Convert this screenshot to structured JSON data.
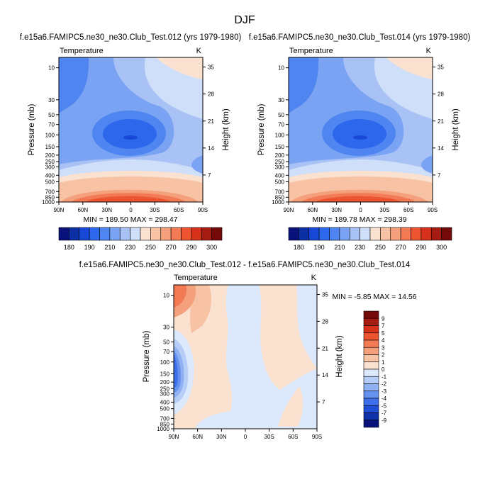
{
  "figure": {
    "title": "DJF"
  },
  "chart_data": [
    {
      "type": "heatmap",
      "title": "f.e15a6.FAMIPC5.ne30_ne30.Club_Test.012 (yrs 1979-1980)",
      "left_label": "Temperature",
      "right_label": "K",
      "xlabel": "",
      "ylabel": "Pressure (mb)",
      "y2label": "Height (km)",
      "x_ticks": [
        "90N",
        "60N",
        "30N",
        "0",
        "30S",
        "60S",
        "90S"
      ],
      "y_ticks": [
        "10",
        "30",
        "50",
        "70",
        "100",
        "150",
        "200",
        "250",
        "300",
        "400",
        "500",
        "700",
        "850",
        "1000"
      ],
      "y2_ticks": [
        "35",
        "28",
        "21",
        "14",
        "7"
      ],
      "stats": "MIN = 189.50  MAX = 298.47",
      "min": 189.5,
      "max": 298.47,
      "colorbar_labels": [
        "180",
        "190",
        "210",
        "230",
        "250",
        "270",
        "290",
        "300"
      ]
    },
    {
      "type": "heatmap",
      "title": "f.e15a6.FAMIPC5.ne30_ne30.Club_Test.014 (yrs 1979-1980)",
      "left_label": "Temperature",
      "right_label": "K",
      "xlabel": "",
      "ylabel": "Pressure (mb)",
      "y2label": "Height (km)",
      "x_ticks": [
        "90N",
        "60N",
        "30N",
        "0",
        "30S",
        "60S",
        "90S"
      ],
      "y_ticks": [
        "10",
        "30",
        "50",
        "70",
        "100",
        "150",
        "200",
        "250",
        "300",
        "400",
        "500",
        "700",
        "850",
        "1000"
      ],
      "y2_ticks": [
        "35",
        "28",
        "21",
        "14",
        "7"
      ],
      "stats": "MIN = 189.78  MAX = 298.39",
      "min": 189.78,
      "max": 298.39,
      "colorbar_labels": [
        "180",
        "190",
        "210",
        "230",
        "250",
        "270",
        "290",
        "300"
      ]
    },
    {
      "type": "heatmap",
      "title": "f.e15a6.FAMIPC5.ne30_ne30.Club_Test.012 - f.e15a6.FAMIPC5.ne30_ne30.Club_Test.014",
      "left_label": "Temperature",
      "right_label": "K",
      "xlabel": "",
      "ylabel": "Pressure (mb)",
      "y2label": "Height (km)",
      "x_ticks": [
        "90N",
        "60N",
        "30N",
        "0",
        "30S",
        "60S",
        "90S"
      ],
      "y_ticks": [
        "10",
        "30",
        "50",
        "70",
        "100",
        "150",
        "200",
        "250",
        "300",
        "400",
        "500",
        "700",
        "850",
        "1000"
      ],
      "y2_ticks": [
        "35",
        "28",
        "21",
        "14",
        "7"
      ],
      "stats": "MIN = -5.85  MAX = 14.56",
      "min": -5.85,
      "max": 14.56,
      "colorbar_labels": [
        "9",
        "7",
        "5",
        "4",
        "3",
        "2",
        "1",
        "0",
        "-1",
        "-2",
        "-3",
        "-4",
        "-5",
        "-7",
        "-9"
      ]
    }
  ],
  "colors": {
    "abs_scale": [
      "#08127a",
      "#0d2fa4",
      "#1848d6",
      "#2d67ec",
      "#4f85f0",
      "#7ba3f3",
      "#a8c2f6",
      "#cfdef9",
      "#fbe2d0",
      "#f8c3a5",
      "#f5a07c",
      "#f27b55",
      "#ec5530",
      "#d6311a",
      "#a51c12",
      "#740a0a"
    ],
    "diff_scale": [
      "#740a0a",
      "#a51c12",
      "#d6311a",
      "#ec5530",
      "#f27b55",
      "#f5a07c",
      "#f8c3a5",
      "#fbe2d0",
      "#dce8fb",
      "#b5cdf7",
      "#8fb1f3",
      "#6592ef",
      "#3d70ea",
      "#1f4fd8",
      "#1032a8",
      "#08127a"
    ]
  }
}
